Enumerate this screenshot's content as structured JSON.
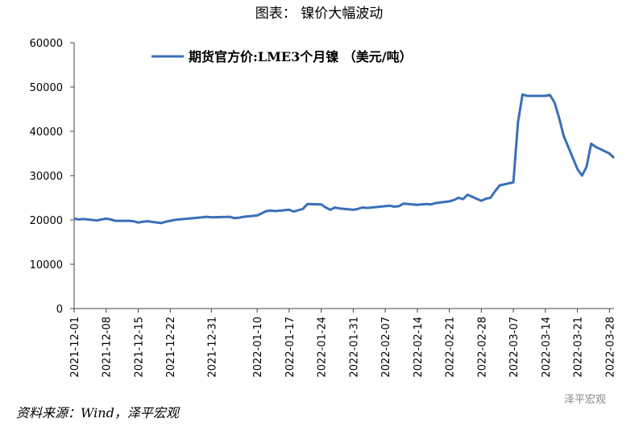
{
  "chart_data": {
    "type": "line",
    "title": "图表： 镍价大幅波动",
    "source": "资料来源：Wind，泽平宏观",
    "watermark": "泽平宏观",
    "legend": "top",
    "x": [
      "2021-12-01",
      "2021-12-02",
      "2021-12-03",
      "2021-12-06",
      "2021-12-07",
      "2021-12-08",
      "2021-12-09",
      "2021-12-10",
      "2021-12-13",
      "2021-12-14",
      "2021-12-15",
      "2021-12-16",
      "2021-12-17",
      "2021-12-20",
      "2021-12-21",
      "2021-12-22",
      "2021-12-23",
      "2021-12-24",
      "2021-12-29",
      "2021-12-30",
      "2021-12-31",
      "2022-01-04",
      "2022-01-05",
      "2022-01-06",
      "2022-01-07",
      "2022-01-10",
      "2022-01-11",
      "2022-01-12",
      "2022-01-13",
      "2022-01-14",
      "2022-01-17",
      "2022-01-18",
      "2022-01-19",
      "2022-01-20",
      "2022-01-21",
      "2022-01-24",
      "2022-01-25",
      "2022-01-26",
      "2022-01-27",
      "2022-01-28",
      "2022-01-31",
      "2022-02-01",
      "2022-02-02",
      "2022-02-03",
      "2022-02-04",
      "2022-02-07",
      "2022-02-08",
      "2022-02-09",
      "2022-02-10",
      "2022-02-11",
      "2022-02-14",
      "2022-02-15",
      "2022-02-16",
      "2022-02-17",
      "2022-02-18",
      "2022-02-21",
      "2022-02-22",
      "2022-02-23",
      "2022-02-24",
      "2022-02-25",
      "2022-02-28",
      "2022-03-01",
      "2022-03-02",
      "2022-03-03",
      "2022-03-04",
      "2022-03-07",
      "2022-03-08",
      "2022-03-09",
      "2022-03-10",
      "2022-03-11",
      "2022-03-14",
      "2022-03-15",
      "2022-03-16",
      "2022-03-17",
      "2022-03-18",
      "2022-03-21",
      "2022-03-22",
      "2022-03-23",
      "2022-03-24",
      "2022-03-25",
      "2022-03-28",
      "2022-03-29"
    ],
    "series": [
      {
        "name": "期货官方价:LME3个月镍 （美元/吨）",
        "color": "#3a6fb8",
        "values": [
          20300,
          20100,
          20200,
          19900,
          20100,
          20300,
          20100,
          19800,
          19800,
          19700,
          19400,
          19600,
          19700,
          19300,
          19600,
          19800,
          20000,
          20100,
          20600,
          20700,
          20600,
          20700,
          20400,
          20500,
          20700,
          21000,
          21500,
          22000,
          22100,
          22000,
          22300,
          21900,
          22200,
          22500,
          23600,
          23500,
          22800,
          22300,
          22800,
          22600,
          22300,
          22500,
          22800,
          22700,
          22800,
          23100,
          23200,
          23000,
          23100,
          23700,
          23400,
          23500,
          23600,
          23500,
          23800,
          24200,
          24500,
          25000,
          24700,
          25700,
          24300,
          24800,
          25000,
          26500,
          27800,
          28500,
          42000,
          48300,
          48000,
          48000,
          48000,
          48200,
          46500,
          43000,
          39000,
          31500,
          30000,
          32000,
          37200,
          36500,
          35000,
          34000
        ]
      }
    ],
    "xlim": [
      "2021-12-01",
      "2022-03-29"
    ],
    "xticks": [
      "2021-12-01",
      "2021-12-08",
      "2021-12-15",
      "2021-12-22",
      "2021-12-31",
      "2022-01-10",
      "2022-01-17",
      "2022-01-24",
      "2022-01-31",
      "2022-02-07",
      "2022-02-14",
      "2022-02-21",
      "2022-02-28",
      "2022-03-07",
      "2022-03-14",
      "2022-03-21",
      "2022-03-28"
    ],
    "ylim": [
      0,
      60000
    ],
    "yticks": [
      0,
      10000,
      20000,
      30000,
      40000,
      50000,
      60000
    ],
    "grid": false
  }
}
